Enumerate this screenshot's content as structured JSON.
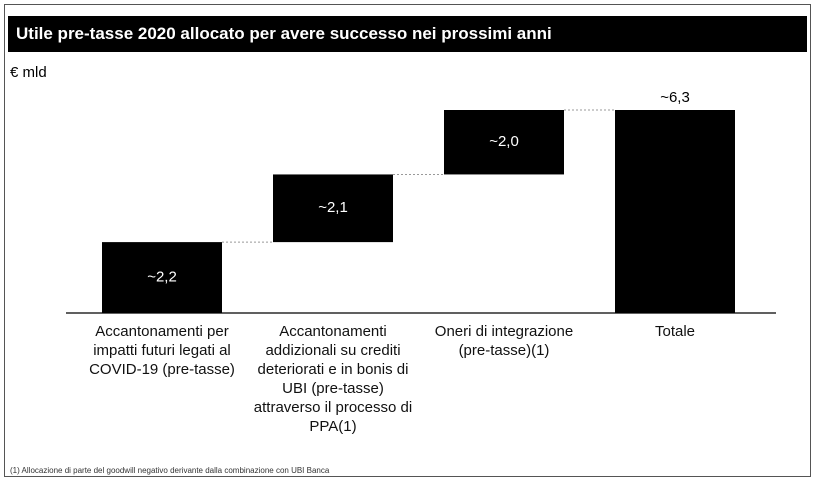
{
  "chart_data": {
    "type": "waterfall",
    "title": "Utile pre-tasse 2020 allocato per avere successo nei prossimi anni",
    "unit_label": "€ mld",
    "categories": [
      "Accantonamenti per impatti futuri legati al COVID-19 (pre-tasse)",
      "Accantonamenti addizionali su crediti deteriorati e in bonis di UBI (pre-tasse) attraverso il processo di PPA(1)",
      "Oneri di integrazione (pre-tasse)(1)",
      "Totale"
    ],
    "values": [
      2.2,
      2.1,
      2.0,
      6.3
    ],
    "value_labels": [
      "~2,2",
      "~2,1",
      "~2,0",
      "~6,3"
    ],
    "color": "#000000",
    "footnote": "(1) Allocazione di parte del goodwill negativo derivante dalla combinazione con UBI Banca"
  }
}
